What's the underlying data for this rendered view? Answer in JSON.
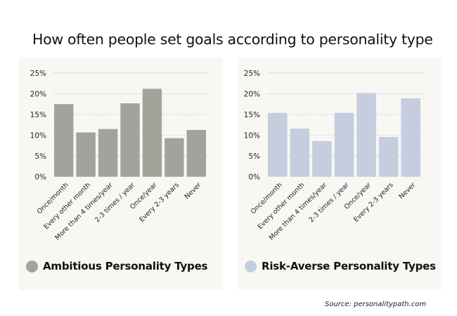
{
  "title": "How often people set goals according to personality type",
  "source": "Source: personalitypath.com",
  "chart_data": [
    {
      "type": "bar",
      "title": "",
      "legend": "Ambitious Personality Types",
      "legend_position": "bottom-left",
      "color": "#a2a49c",
      "categories": [
        "Once/month",
        "Every other month",
        "More than 4 times/year",
        "2-3 times / year",
        "Once/year",
        "Every 2-3 years",
        "Never"
      ],
      "values": [
        17.5,
        10.7,
        11.5,
        17.7,
        21.2,
        9.3,
        11.3
      ],
      "ylim": [
        0,
        25
      ],
      "yticks": [
        "0%",
        "5%",
        "10%",
        "15%",
        "20%",
        "25%"
      ],
      "ytick_values": [
        0,
        5,
        10,
        15,
        20,
        25
      ],
      "xlabel": "",
      "ylabel": "",
      "grid": true
    },
    {
      "type": "bar",
      "title": "",
      "legend": "Risk-Averse Personality Types",
      "legend_position": "bottom-left",
      "color": "#c5cddf",
      "categories": [
        "Once/month",
        "Every other month",
        "More than 4 times/year",
        "2-3 times / year",
        "Once/year",
        "Every 2-3 years",
        "Never"
      ],
      "values": [
        15.4,
        11.6,
        8.6,
        15.4,
        20.2,
        9.6,
        18.9
      ],
      "ylim": [
        0,
        25
      ],
      "yticks": [
        "0%",
        "5%",
        "10%",
        "15%",
        "20%",
        "25%"
      ],
      "ytick_values": [
        0,
        5,
        10,
        15,
        20,
        25
      ],
      "xlabel": "",
      "ylabel": "",
      "grid": true
    }
  ]
}
